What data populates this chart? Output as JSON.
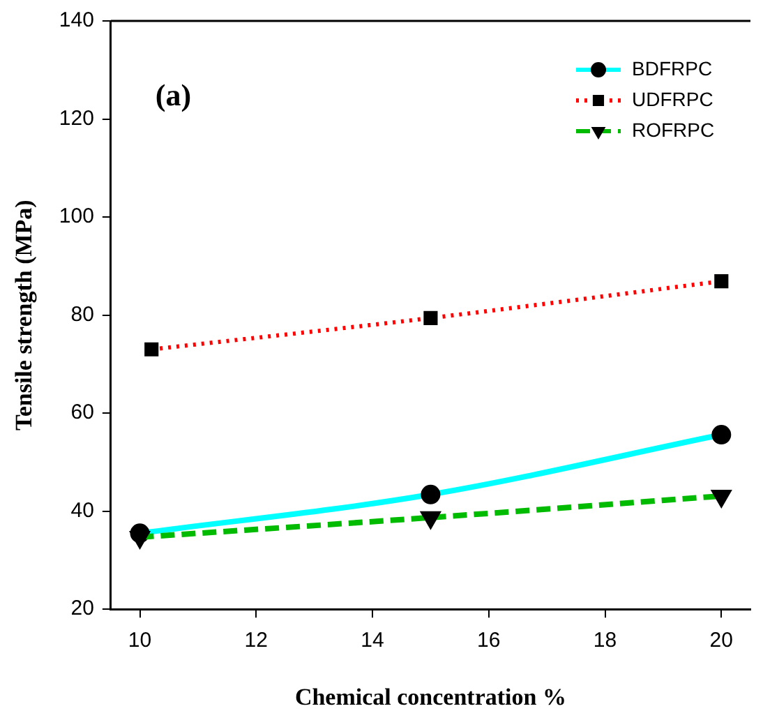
{
  "chart_data": {
    "type": "line",
    "xlabel": "Chemical concentration %",
    "ylabel": "Tensile strength (MPa)",
    "annotations": [
      "(a)"
    ],
    "xlim": [
      9.5,
      20.5
    ],
    "xticks": [
      10,
      12,
      14,
      16,
      18,
      20
    ],
    "ylim": [
      20,
      140
    ],
    "yticks": [
      20,
      40,
      60,
      80,
      100,
      120,
      140
    ],
    "grid": false,
    "legend": "top right",
    "series": [
      {
        "name": "BDFRPC",
        "color": "#00ffff",
        "x": [
          10,
          15,
          20
        ],
        "values": [
          35.5,
          43.4,
          55.6
        ],
        "marker": "circle",
        "line_style": "solid"
      },
      {
        "name": "UDFRPC",
        "color": "#ff0000",
        "x": [
          10.2,
          15,
          20
        ],
        "values": [
          73,
          79.4,
          86.9
        ],
        "marker": "square",
        "line_style": "dotted"
      },
      {
        "name": "ROFRPC",
        "color": "#00bb00",
        "x": [
          10,
          15,
          20
        ],
        "values": [
          34.7,
          38.7,
          43.1
        ],
        "marker": "triangle",
        "line_style": "dashed"
      }
    ]
  }
}
